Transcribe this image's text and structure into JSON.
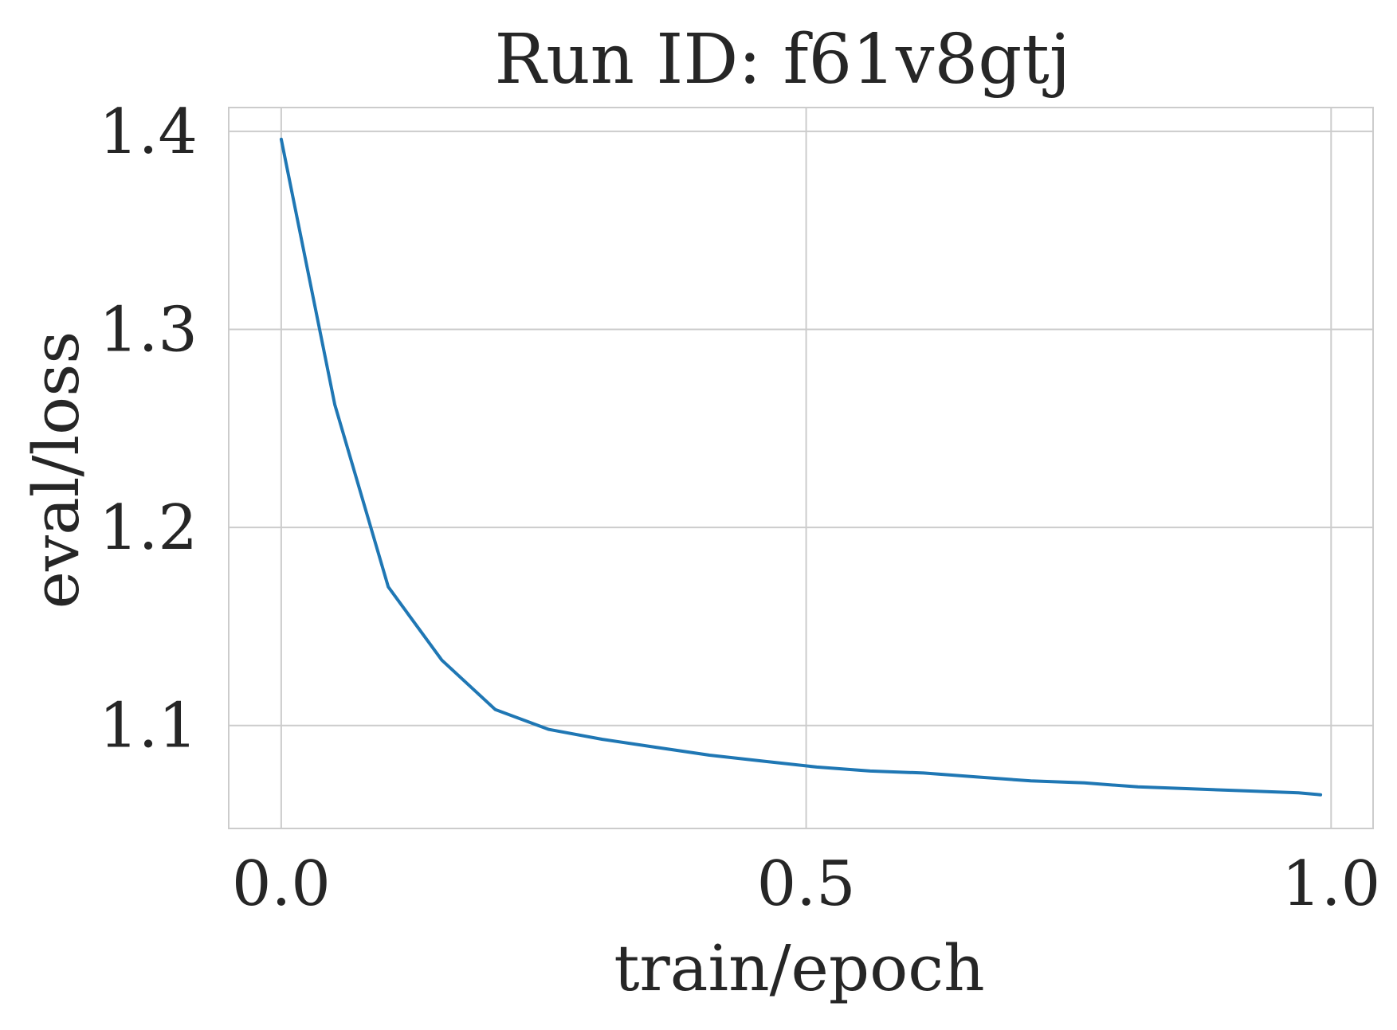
{
  "chart_data": {
    "type": "line",
    "title": "Run ID: f61v8gtj",
    "xlabel": "train/epoch",
    "ylabel": "eval/loss",
    "xlim": [
      -0.05,
      1.04
    ],
    "ylim": [
      1.048,
      1.412
    ],
    "xticks": [
      0.0,
      0.5,
      1.0
    ],
    "xtick_labels": [
      "0.0",
      "0.5",
      "1.0"
    ],
    "yticks": [
      1.1,
      1.2,
      1.3,
      1.4
    ],
    "ytick_labels": [
      "1.1",
      "1.2",
      "1.3",
      "1.4"
    ],
    "grid": true,
    "legend": "none",
    "series": [
      {
        "color": "#1f77b4",
        "x": [
          0.0,
          0.051,
          0.102,
          0.153,
          0.204,
          0.255,
          0.306,
          0.357,
          0.408,
          0.459,
          0.51,
          0.561,
          0.612,
          0.663,
          0.714,
          0.765,
          0.816,
          0.867,
          0.918,
          0.969,
          0.99
        ],
        "y": [
          1.396,
          1.262,
          1.17,
          1.133,
          1.108,
          1.098,
          1.093,
          1.089,
          1.085,
          1.082,
          1.079,
          1.077,
          1.076,
          1.074,
          1.072,
          1.071,
          1.069,
          1.068,
          1.067,
          1.066,
          1.065
        ]
      }
    ]
  }
}
